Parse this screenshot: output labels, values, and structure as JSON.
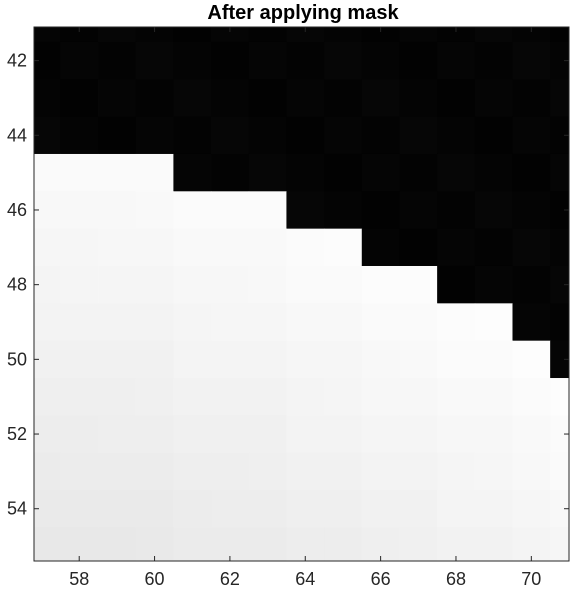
{
  "chart_data": {
    "type": "heatmap",
    "title": "After applying mask",
    "xlabel": "",
    "ylabel": "",
    "colormap": "gray",
    "xlim": [
      56.8,
      71.0
    ],
    "ylim": [
      41.1,
      55.4
    ],
    "y_direction": "reverse",
    "x_ticks": [
      58,
      60,
      62,
      64,
      66,
      68,
      70
    ],
    "y_ticks": [
      42,
      44,
      46,
      48,
      50,
      52,
      54
    ],
    "x_tick_labels": [
      "58",
      "60",
      "62",
      "64",
      "66",
      "68",
      "70"
    ],
    "y_tick_labels": [
      "42",
      "44",
      "46",
      "48",
      "50",
      "52",
      "54"
    ],
    "grid": false,
    "mask_boundary_first_masked_row_by_column": [
      {
        "x": 57,
        "first_masked_row": 44
      },
      {
        "x": 58,
        "first_masked_row": 44
      },
      {
        "x": 59,
        "first_masked_row": 44
      },
      {
        "x": 60,
        "first_masked_row": 44
      },
      {
        "x": 61,
        "first_masked_row": 45
      },
      {
        "x": 62,
        "first_masked_row": 45
      },
      {
        "x": 63,
        "first_masked_row": 45
      },
      {
        "x": 64,
        "first_masked_row": 46
      },
      {
        "x": 65,
        "first_masked_row": 46
      },
      {
        "x": 66,
        "first_masked_row": 47
      },
      {
        "x": 67,
        "first_masked_row": 47
      },
      {
        "x": 68,
        "first_masked_row": 48
      },
      {
        "x": 69,
        "first_masked_row": 48
      },
      {
        "x": 70,
        "first_masked_row": 49
      },
      {
        "x": 71,
        "first_masked_row": 50
      }
    ],
    "masked_value_color": "#000000",
    "unmasked_value_range": [
      0.88,
      1.0
    ]
  }
}
